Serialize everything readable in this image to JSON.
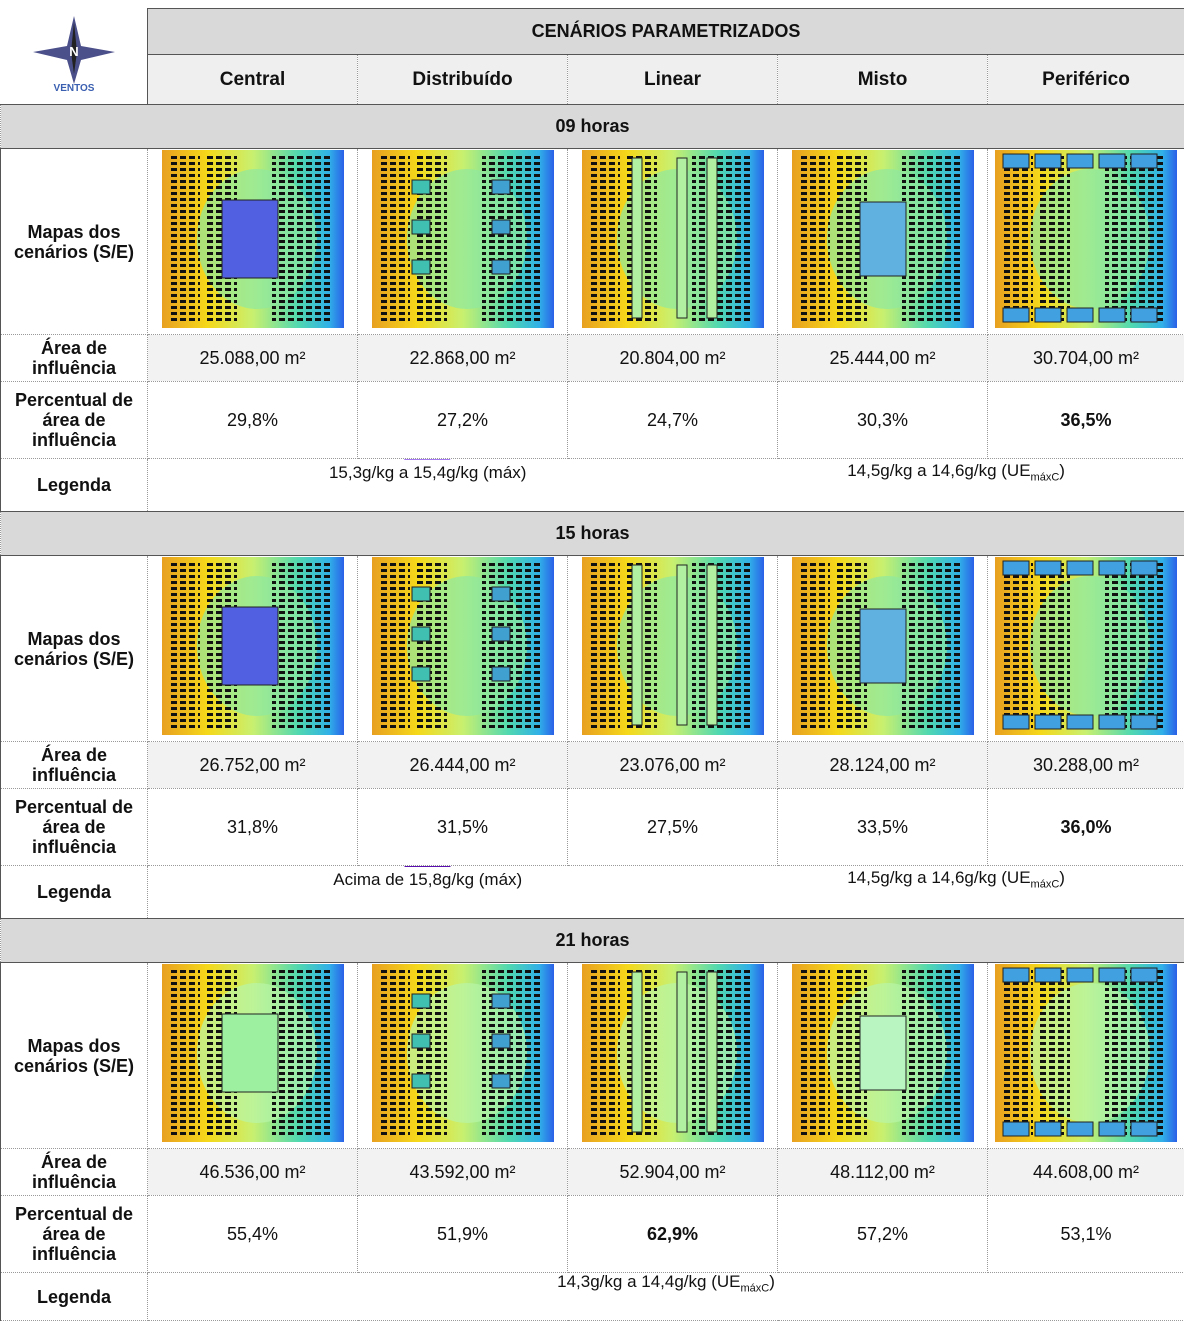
{
  "logo": {
    "letter": "N",
    "label": "VENTOS"
  },
  "header": {
    "title": "CENÁRIOS PARAMETRIZADOS",
    "columns": [
      "Central",
      "Distribuído",
      "Linear",
      "Misto",
      "Periférico"
    ]
  },
  "row_labels": {
    "maps": "Mapas dos cenários (S/E)",
    "area": "Área de influência",
    "percent": "Percentual de área de influência",
    "legend": "Legenda"
  },
  "sections": [
    {
      "title": "09 horas",
      "areas": [
        "25.088,00 m²",
        "22.868,00 m²",
        "20.804,00 m²",
        "25.444,00 m²",
        "30.704,00 m²"
      ],
      "percents": [
        "29,8%",
        "27,2%",
        "24,7%",
        "30,3%",
        "36,5%"
      ],
      "highlight": 4,
      "legend": [
        {
          "color": "#a57af0",
          "text": "15,3g/kg a 15,4g/kg (máx)"
        },
        {
          "color": "#33d18f",
          "text": "14,5g/kg a 14,6g/kg (UE",
          "sub": "máxC",
          "suffix": ")"
        }
      ]
    },
    {
      "title": "15 horas",
      "areas": [
        "26.752,00 m²",
        "26.444,00 m²",
        "23.076,00 m²",
        "28.124,00 m²",
        "30.288,00 m²"
      ],
      "percents": [
        "31,8%",
        "31,5%",
        "27,5%",
        "33,5%",
        "36,0%"
      ],
      "highlight": 4,
      "legend": [
        {
          "color": "#5a0fb0",
          "text": "Acima de 15,8g/kg (máx)"
        },
        {
          "color": "#33d18f",
          "text": "14,5g/kg a 14,6g/kg (UE",
          "sub": "máxC",
          "suffix": ")"
        }
      ]
    },
    {
      "title": "21 horas",
      "areas": [
        "46.536,00 m²",
        "43.592,00 m²",
        "52.904,00 m²",
        "48.112,00 m²",
        "44.608,00 m²"
      ],
      "percents": [
        "55,4%",
        "51,9%",
        "62,9%",
        "57,2%",
        "53,1%"
      ],
      "highlight": 2,
      "legend": [
        {
          "color": "#a3f5a0",
          "text": "14,3g/kg a 14,4g/kg (UE",
          "sub": "máxC",
          "suffix": ")"
        }
      ]
    }
  ]
}
